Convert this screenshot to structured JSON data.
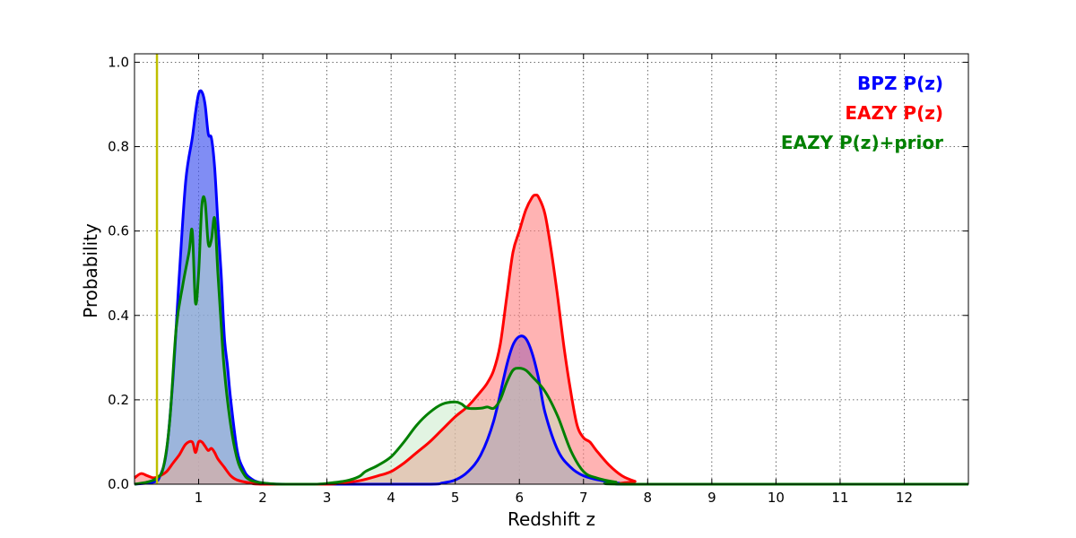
{
  "chart_data": {
    "type": "area",
    "xlabel": "Redshift z",
    "ylabel": "Probability",
    "xlim": [
      0,
      13
    ],
    "ylim": [
      0,
      1.02
    ],
    "x_ticks": [
      1,
      2,
      3,
      4,
      5,
      6,
      7,
      8,
      9,
      10,
      11,
      12
    ],
    "y_ticks": [
      0.0,
      0.2,
      0.4,
      0.6,
      0.8,
      1.0
    ],
    "y_tick_labels": [
      "0.0",
      "0.2",
      "0.4",
      "0.6",
      "0.8",
      "1.0"
    ],
    "grid": true,
    "legend_position": "top-right",
    "vertical_line": {
      "x": 0.35,
      "color": "#bfbf00"
    },
    "series": [
      {
        "name": "BPZ P(z)",
        "color": "#0000ff",
        "fill": "#4a5cf0",
        "fill_opacity": 0.7,
        "points": [
          [
            0,
            0
          ],
          [
            0.3,
            0.005
          ],
          [
            0.4,
            0.02
          ],
          [
            0.5,
            0.08
          ],
          [
            0.6,
            0.25
          ],
          [
            0.7,
            0.5
          ],
          [
            0.8,
            0.72
          ],
          [
            0.9,
            0.82
          ],
          [
            0.95,
            0.88
          ],
          [
            1.0,
            0.925
          ],
          [
            1.05,
            0.93
          ],
          [
            1.1,
            0.9
          ],
          [
            1.15,
            0.83
          ],
          [
            1.2,
            0.82
          ],
          [
            1.25,
            0.75
          ],
          [
            1.3,
            0.62
          ],
          [
            1.35,
            0.5
          ],
          [
            1.4,
            0.35
          ],
          [
            1.45,
            0.28
          ],
          [
            1.5,
            0.2
          ],
          [
            1.6,
            0.08
          ],
          [
            1.7,
            0.035
          ],
          [
            1.8,
            0.015
          ],
          [
            2.0,
            0.003
          ],
          [
            2.5,
            0
          ],
          [
            4.5,
            0
          ],
          [
            4.8,
            0.003
          ],
          [
            5.0,
            0.01
          ],
          [
            5.2,
            0.03
          ],
          [
            5.4,
            0.07
          ],
          [
            5.6,
            0.15
          ],
          [
            5.8,
            0.28
          ],
          [
            5.9,
            0.33
          ],
          [
            6.0,
            0.35
          ],
          [
            6.1,
            0.345
          ],
          [
            6.2,
            0.31
          ],
          [
            6.3,
            0.25
          ],
          [
            6.4,
            0.17
          ],
          [
            6.6,
            0.08
          ],
          [
            6.8,
            0.04
          ],
          [
            7.0,
            0.02
          ],
          [
            7.3,
            0.008
          ],
          [
            7.6,
            0.002
          ],
          [
            8.0,
            0
          ],
          [
            13,
            0
          ]
        ]
      },
      {
        "name": "EAZY P(z)",
        "color": "#ff0000",
        "fill": "#ff8080",
        "fill_opacity": 0.6,
        "points": [
          [
            0,
            0.015
          ],
          [
            0.1,
            0.025
          ],
          [
            0.2,
            0.02
          ],
          [
            0.3,
            0.015
          ],
          [
            0.4,
            0.02
          ],
          [
            0.5,
            0.03
          ],
          [
            0.6,
            0.05
          ],
          [
            0.7,
            0.07
          ],
          [
            0.8,
            0.095
          ],
          [
            0.9,
            0.1
          ],
          [
            0.95,
            0.075
          ],
          [
            1.0,
            0.1
          ],
          [
            1.05,
            0.1
          ],
          [
            1.1,
            0.09
          ],
          [
            1.15,
            0.08
          ],
          [
            1.2,
            0.085
          ],
          [
            1.25,
            0.075
          ],
          [
            1.3,
            0.06
          ],
          [
            1.4,
            0.04
          ],
          [
            1.5,
            0.02
          ],
          [
            1.6,
            0.01
          ],
          [
            1.8,
            0.003
          ],
          [
            2.0,
            0
          ],
          [
            3.0,
            0
          ],
          [
            3.2,
            0.003
          ],
          [
            3.5,
            0.008
          ],
          [
            3.8,
            0.02
          ],
          [
            4.0,
            0.03
          ],
          [
            4.2,
            0.05
          ],
          [
            4.4,
            0.075
          ],
          [
            4.6,
            0.1
          ],
          [
            4.8,
            0.13
          ],
          [
            5.0,
            0.16
          ],
          [
            5.2,
            0.185
          ],
          [
            5.4,
            0.22
          ],
          [
            5.5,
            0.24
          ],
          [
            5.6,
            0.27
          ],
          [
            5.7,
            0.33
          ],
          [
            5.8,
            0.44
          ],
          [
            5.9,
            0.55
          ],
          [
            6.0,
            0.6
          ],
          [
            6.1,
            0.65
          ],
          [
            6.2,
            0.68
          ],
          [
            6.25,
            0.685
          ],
          [
            6.3,
            0.68
          ],
          [
            6.4,
            0.64
          ],
          [
            6.5,
            0.55
          ],
          [
            6.6,
            0.44
          ],
          [
            6.7,
            0.32
          ],
          [
            6.8,
            0.22
          ],
          [
            6.9,
            0.14
          ],
          [
            7.0,
            0.11
          ],
          [
            7.1,
            0.1
          ],
          [
            7.2,
            0.08
          ],
          [
            7.4,
            0.045
          ],
          [
            7.6,
            0.02
          ],
          [
            7.8,
            0.007
          ],
          [
            8.0,
            0
          ],
          [
            13,
            0
          ]
        ]
      },
      {
        "name": "EAZY P(z)+prior",
        "color": "#008000",
        "fill": "#bfe6bf",
        "fill_opacity": 0.45,
        "points": [
          [
            0,
            0
          ],
          [
            0.2,
            0.005
          ],
          [
            0.35,
            0.015
          ],
          [
            0.45,
            0.04
          ],
          [
            0.55,
            0.15
          ],
          [
            0.65,
            0.37
          ],
          [
            0.75,
            0.47
          ],
          [
            0.85,
            0.55
          ],
          [
            0.9,
            0.6
          ],
          [
            0.95,
            0.43
          ],
          [
            1.0,
            0.5
          ],
          [
            1.05,
            0.66
          ],
          [
            1.1,
            0.67
          ],
          [
            1.15,
            0.57
          ],
          [
            1.2,
            0.58
          ],
          [
            1.25,
            0.63
          ],
          [
            1.3,
            0.5
          ],
          [
            1.35,
            0.38
          ],
          [
            1.4,
            0.27
          ],
          [
            1.5,
            0.14
          ],
          [
            1.6,
            0.06
          ],
          [
            1.7,
            0.025
          ],
          [
            1.8,
            0.01
          ],
          [
            2.0,
            0.003
          ],
          [
            2.3,
            0
          ],
          [
            2.8,
            0
          ],
          [
            3.0,
            0.002
          ],
          [
            3.3,
            0.008
          ],
          [
            3.5,
            0.018
          ],
          [
            3.6,
            0.03
          ],
          [
            3.8,
            0.045
          ],
          [
            4.0,
            0.065
          ],
          [
            4.2,
            0.1
          ],
          [
            4.4,
            0.14
          ],
          [
            4.6,
            0.17
          ],
          [
            4.8,
            0.19
          ],
          [
            5.0,
            0.195
          ],
          [
            5.1,
            0.19
          ],
          [
            5.2,
            0.18
          ],
          [
            5.4,
            0.18
          ],
          [
            5.5,
            0.183
          ],
          [
            5.6,
            0.18
          ],
          [
            5.7,
            0.2
          ],
          [
            5.8,
            0.24
          ],
          [
            5.9,
            0.27
          ],
          [
            6.0,
            0.275
          ],
          [
            6.1,
            0.27
          ],
          [
            6.2,
            0.255
          ],
          [
            6.4,
            0.22
          ],
          [
            6.6,
            0.16
          ],
          [
            6.8,
            0.08
          ],
          [
            7.0,
            0.03
          ],
          [
            7.2,
            0.015
          ],
          [
            7.5,
            0.005
          ],
          [
            7.8,
            0
          ],
          [
            13,
            0
          ]
        ]
      }
    ]
  }
}
